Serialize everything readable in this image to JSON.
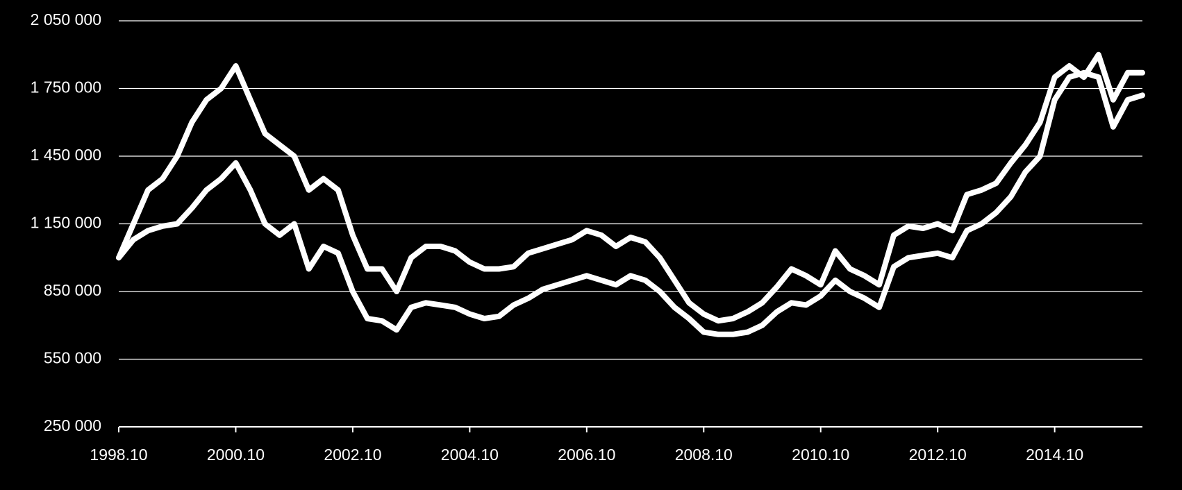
{
  "chart_data": {
    "type": "line",
    "x": [
      1998.75,
      1999,
      1999.25,
      1999.5,
      1999.75,
      2000,
      2000.25,
      2000.5,
      2000.75,
      2001,
      2001.25,
      2001.5,
      2001.75,
      2002,
      2002.25,
      2002.5,
      2002.75,
      2003,
      2003.25,
      2003.5,
      2003.75,
      2004,
      2004.25,
      2004.5,
      2004.75,
      2005,
      2005.25,
      2005.5,
      2005.75,
      2006,
      2006.25,
      2006.5,
      2006.75,
      2007,
      2007.25,
      2007.5,
      2007.75,
      2008,
      2008.25,
      2008.5,
      2008.75,
      2009,
      2009.25,
      2009.5,
      2009.75,
      2010,
      2010.25,
      2010.5,
      2010.75,
      2011,
      2011.25,
      2011.5,
      2011.75,
      2012,
      2012.25,
      2012.5,
      2012.75,
      2013,
      2013.25,
      2013.5,
      2013.75,
      2014,
      2014.25,
      2014.5,
      2014.75,
      2015,
      2015.25,
      2015.5,
      2015.75,
      2016,
      2016.25
    ],
    "series": [
      {
        "color": "#ffffff",
        "values": [
          1000000,
          1150000,
          1300000,
          1350000,
          1450000,
          1600000,
          1700000,
          1750000,
          1850000,
          1700000,
          1550000,
          1500000,
          1450000,
          1300000,
          1350000,
          1300000,
          1100000,
          950000,
          950000,
          850000,
          1000000,
          1050000,
          1050000,
          1030000,
          980000,
          950000,
          950000,
          960000,
          1020000,
          1040000,
          1060000,
          1080000,
          1120000,
          1100000,
          1050000,
          1090000,
          1070000,
          1000000,
          900000,
          800000,
          750000,
          720000,
          730000,
          760000,
          800000,
          870000,
          950000,
          920000,
          880000,
          1030000,
          950000,
          920000,
          880000,
          1100000,
          1140000,
          1130000,
          1150000,
          1120000,
          1280000,
          1300000,
          1330000,
          1420000,
          1500000,
          1600000,
          1800000,
          1850000,
          1800000,
          1900000,
          1700000,
          1820000,
          1820000
        ]
      },
      {
        "color": "#ffffff",
        "values": [
          1000000,
          1080000,
          1120000,
          1140000,
          1150000,
          1220000,
          1300000,
          1350000,
          1420000,
          1300000,
          1150000,
          1100000,
          1150000,
          950000,
          1050000,
          1020000,
          850000,
          730000,
          720000,
          680000,
          780000,
          800000,
          790000,
          780000,
          750000,
          730000,
          740000,
          790000,
          820000,
          860000,
          880000,
          900000,
          920000,
          900000,
          880000,
          920000,
          900000,
          850000,
          780000,
          730000,
          670000,
          660000,
          660000,
          670000,
          700000,
          760000,
          800000,
          790000,
          830000,
          900000,
          850000,
          820000,
          780000,
          960000,
          1000000,
          1010000,
          1020000,
          1000000,
          1120000,
          1150000,
          1200000,
          1270000,
          1380000,
          1450000,
          1700000,
          1800000,
          1820000,
          1800000,
          1580000,
          1700000,
          1720000
        ]
      }
    ],
    "xlim": [
      1998.75,
      2016.25
    ],
    "xticks": [
      {
        "value": 1998.75,
        "label": "1998.10"
      },
      {
        "value": 2000.75,
        "label": "2000.10"
      },
      {
        "value": 2002.75,
        "label": "2002.10"
      },
      {
        "value": 2004.75,
        "label": "2004.10"
      },
      {
        "value": 2006.75,
        "label": "2006.10"
      },
      {
        "value": 2008.75,
        "label": "2008.10"
      },
      {
        "value": 2010.75,
        "label": "2010.10"
      },
      {
        "value": 2012.75,
        "label": "2012.10"
      },
      {
        "value": 2014.75,
        "label": "2014.10"
      }
    ],
    "ylim": [
      250000,
      2050000
    ],
    "yticks": [
      {
        "value": 250000,
        "label": "250 000"
      },
      {
        "value": 550000,
        "label": "550 000"
      },
      {
        "value": 850000,
        "label": "850 000"
      },
      {
        "value": 1150000,
        "label": "1 150 000"
      },
      {
        "value": 1450000,
        "label": "1 450 000"
      },
      {
        "value": 1750000,
        "label": "1 750 000"
      },
      {
        "value": 2050000,
        "label": "2 050 000"
      }
    ],
    "grid": true
  }
}
